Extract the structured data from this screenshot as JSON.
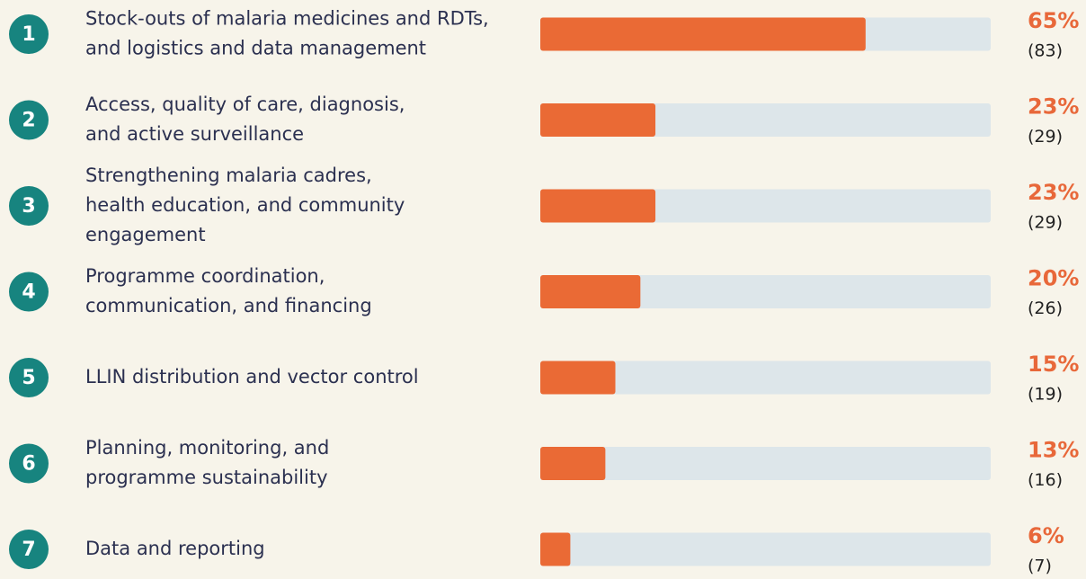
{
  "chart_data": {
    "type": "bar",
    "orientation": "horizontal",
    "ranks": [
      1,
      2,
      3,
      4,
      5,
      6,
      7
    ],
    "categories": [
      [
        "Stock-outs of malaria medicines and RDTs,",
        "and logistics and data management"
      ],
      [
        "Access, quality of care, diagnosis,",
        "and active surveillance"
      ],
      [
        "Strengthening malaria cadres,",
        "health education, and community",
        "engagement"
      ],
      [
        "Programme coordination,",
        "communication, and financing"
      ],
      [
        "LLIN distribution and vector control"
      ],
      [
        "Planning, monitoring, and",
        "programme sustainability"
      ],
      [
        "Data and reporting"
      ]
    ],
    "values": [
      65,
      23,
      23,
      20,
      15,
      13,
      6
    ],
    "value_labels": [
      "65%",
      "23%",
      "23%",
      "20%",
      "15%",
      "13%",
      "6%"
    ],
    "count_labels": [
      "(83)",
      "(29)",
      "(29)",
      "(26)",
      "(19)",
      "(16)",
      "(7)"
    ],
    "color": "#ea6a35",
    "track_color": "#dde6ea",
    "rank_color": "#17847f",
    "xlim": [
      0,
      90
    ]
  }
}
